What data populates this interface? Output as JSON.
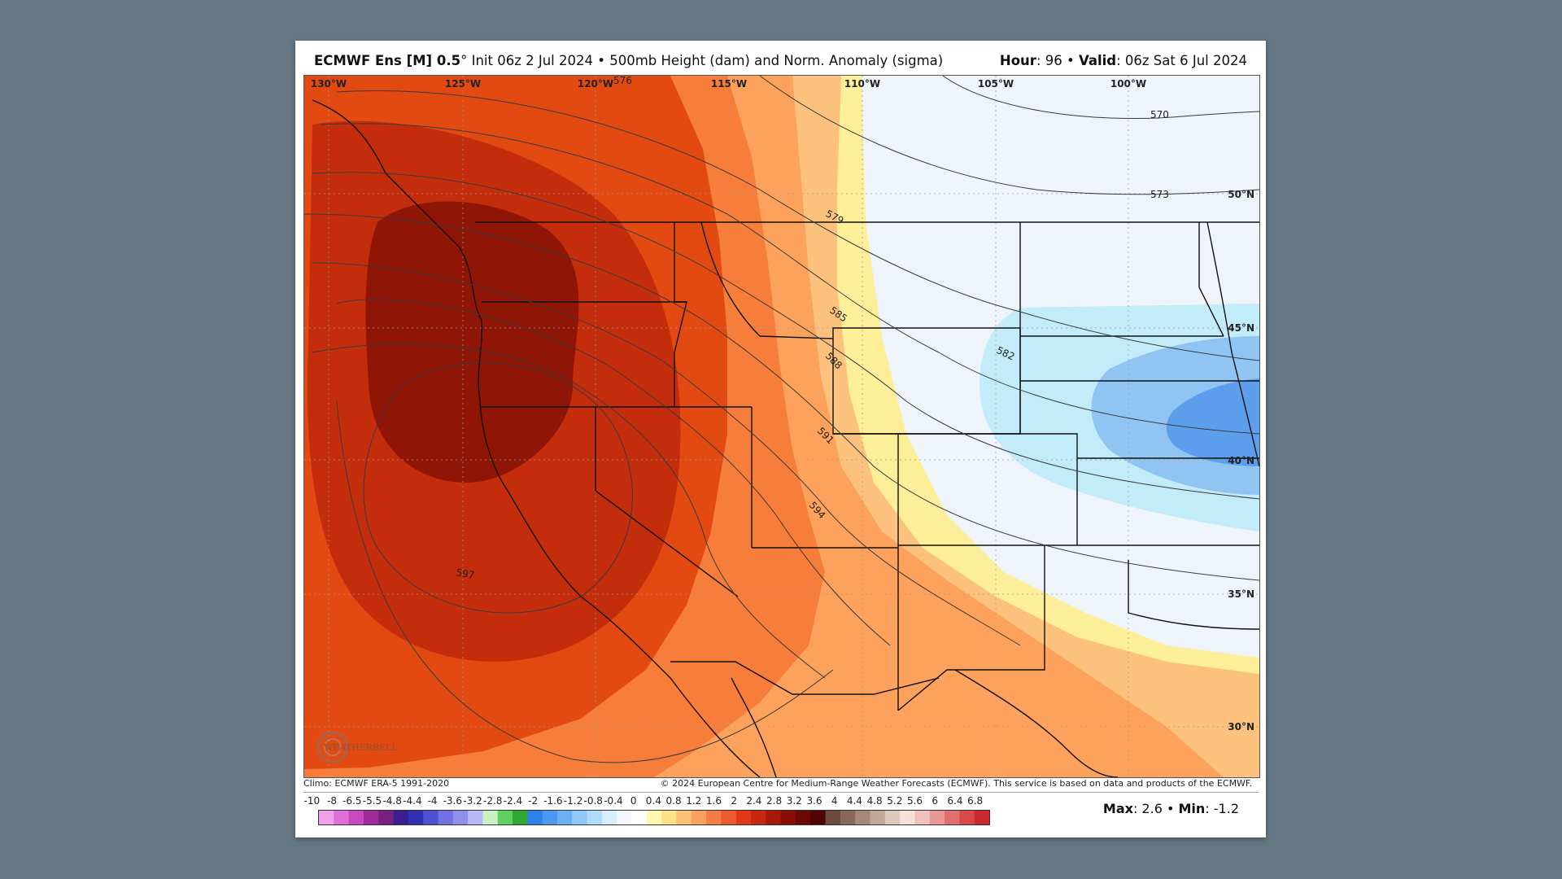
{
  "header": {
    "model": "ECMWF Ens [M] 0.5",
    "deg": "°",
    "init_text": "Init 06z 2 Jul 2024",
    "sep1": "•",
    "product": "500mb Height (dam) and Norm. Anomaly (sigma)",
    "hour_label": "Hour",
    "hour_value": ": 96",
    "sep2": "•",
    "valid_label": "Valid",
    "valid_value": ": 06z Sat 6 Jul 2024"
  },
  "map": {
    "longitude_labels": [
      "130°W",
      "125°W",
      "120°W",
      "115°W",
      "110°W",
      "105°W",
      "100°W"
    ],
    "latitude_labels": [
      "50°N",
      "45°N",
      "40°N",
      "35°N",
      "30°N"
    ],
    "contour_labels": [
      "570",
      "573",
      "576",
      "579",
      "582",
      "585",
      "588",
      "591",
      "594",
      "597"
    ],
    "watermark": "WEATHERBELL"
  },
  "footer": {
    "climo": "Climo: ECMWF ERA-5 1991-2020",
    "copyright": "© 2024 European Centre for Medium-Range Weather Forecasts (ECMWF). This service is based on data and products of the ECMWF.",
    "max_label": "Max",
    "max_value": ": 2.6",
    "sep": "•",
    "min_label": "Min",
    "min_value": ": -1.2"
  },
  "legend": {
    "labels": [
      "-10",
      "-8",
      "-6.5",
      "-5.5",
      "-4.8",
      "-4.4",
      "-4",
      "-3.6",
      "-3.2",
      "-2.8",
      "-2.4",
      "-2",
      "-1.6",
      "-1.2",
      "-0.8",
      "-0.4",
      "0",
      "0.4",
      "0.8",
      "1.2",
      "1.6",
      "2",
      "2.4",
      "2.8",
      "3.2",
      "3.6",
      "4",
      "4.4",
      "4.8",
      "5.2",
      "5.6",
      "6",
      "6.4",
      "6.8"
    ],
    "colors": [
      "#f0a0e8",
      "#e070d8",
      "#c848c0",
      "#a02898",
      "#782080",
      "#3a1e90",
      "#3030b0",
      "#5050d0",
      "#7070e0",
      "#9090ec",
      "#b8b8f4",
      "#c8f0c0",
      "#60d060",
      "#2ea832",
      "#2c80e8",
      "#4a98f0",
      "#6cb0f4",
      "#8ec8f8",
      "#b0dcfc",
      "#d6eefc",
      "#f4f8fe",
      "#ffffff",
      "#fff8b0",
      "#fde088",
      "#fcc074",
      "#f8a060",
      "#f47e48",
      "#ee5a30",
      "#e03818",
      "#c82810",
      "#a81808",
      "#880e06",
      "#6a0804",
      "#500402",
      "#6e4a40",
      "#8a6858",
      "#a68878",
      "#c2a898",
      "#dcc8bc",
      "#f4e2da",
      "#f0c0bc",
      "#e89896",
      "#e07070",
      "#d84848",
      "#cc2830"
    ]
  },
  "colors": {
    "background": "#667784",
    "dark_red": "#8f1507",
    "red": "#c42d0b",
    "orange_red": "#e34a12",
    "orange": "#f77d3b",
    "light_orange": "#fca25c",
    "tan": "#fcc27d",
    "yellow": "#fdee9a",
    "pale": "#eff4fb",
    "light_blue": "#c3ecfb",
    "blue": "#8fc4f3",
    "mid_blue": "#5d9eec"
  }
}
